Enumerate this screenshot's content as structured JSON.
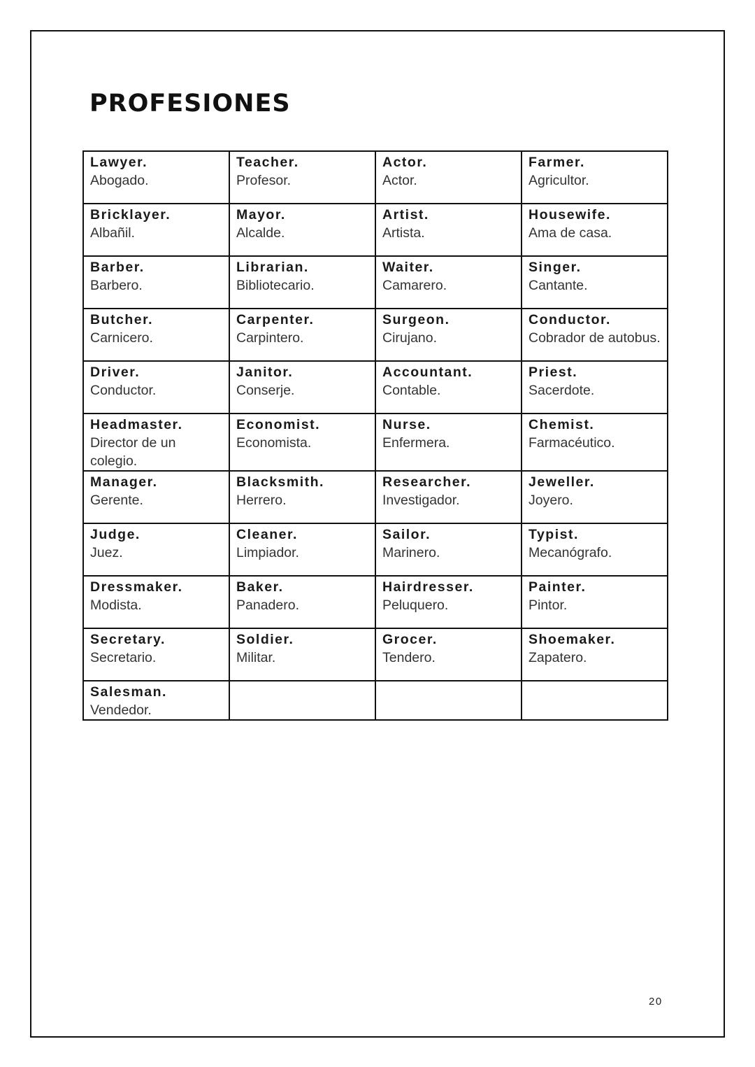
{
  "title": "PROFESIONES",
  "page_number": "20",
  "table": {
    "rows": [
      [
        {
          "en": "Lawyer.",
          "es": "Abogado."
        },
        {
          "en": "Teacher.",
          "es": "Profesor."
        },
        {
          "en": "Actor.",
          "es": "Actor."
        },
        {
          "en": "Farmer.",
          "es": "Agricultor."
        }
      ],
      [
        {
          "en": "Bricklayer.",
          "es": "Albañil."
        },
        {
          "en": "Mayor.",
          "es": "Alcalde."
        },
        {
          "en": "Artist.",
          "es": "Artista."
        },
        {
          "en": "Housewife.",
          "es": "Ama de casa."
        }
      ],
      [
        {
          "en": "Barber.",
          "es": "Barbero."
        },
        {
          "en": "Librarian.",
          "es": "Bibliotecario."
        },
        {
          "en": "Waiter.",
          "es": "Camarero."
        },
        {
          "en": "Singer.",
          "es": "Cantante."
        }
      ],
      [
        {
          "en": "Butcher.",
          "es": "Carnicero."
        },
        {
          "en": "Carpenter.",
          "es": "Carpintero."
        },
        {
          "en": "Surgeon.",
          "es": "Cirujano."
        },
        {
          "en": "Conductor.",
          "es": "Cobrador de autobus."
        }
      ],
      [
        {
          "en": "Driver.",
          "es": "Conductor."
        },
        {
          "en": "Janitor.",
          "es": "Conserje."
        },
        {
          "en": "Accountant.",
          "es": "Contable."
        },
        {
          "en": "Priest.",
          "es": "Sacerdote."
        }
      ],
      [
        {
          "en": "Headmaster.",
          "es": "Director de un colegio."
        },
        {
          "en": "Economist.",
          "es": "Economista."
        },
        {
          "en": "Nurse.",
          "es": "Enfermera."
        },
        {
          "en": "Chemist.",
          "es": "Farmacéutico."
        }
      ],
      [
        {
          "en": "Manager.",
          "es": "Gerente."
        },
        {
          "en": "Blacksmith.",
          "es": "Herrero."
        },
        {
          "en": "Researcher.",
          "es": "Investigador."
        },
        {
          "en": "Jeweller.",
          "es": "Joyero."
        }
      ],
      [
        {
          "en": "Judge.",
          "es": "Juez."
        },
        {
          "en": "Cleaner.",
          "es": "Limpiador."
        },
        {
          "en": "Sailor.",
          "es": "Marinero."
        },
        {
          "en": "Typist.",
          "es": "Mecanógrafo."
        }
      ],
      [
        {
          "en": "Dressmaker.",
          "es": "Modista."
        },
        {
          "en": "Baker.",
          "es": "Panadero."
        },
        {
          "en": "Hairdresser.",
          "es": "Peluquero."
        },
        {
          "en": "Painter.",
          "es": "Pintor."
        }
      ],
      [
        {
          "en": "Secretary.",
          "es": "Secretario."
        },
        {
          "en": "Soldier.",
          "es": "Militar."
        },
        {
          "en": "Grocer.",
          "es": "Tendero."
        },
        {
          "en": "Shoemaker.",
          "es": "Zapatero."
        }
      ],
      [
        {
          "en": "Salesman.",
          "es": "Vendedor."
        },
        {
          "en": "",
          "es": ""
        },
        {
          "en": "",
          "es": ""
        },
        {
          "en": "",
          "es": ""
        }
      ]
    ]
  }
}
